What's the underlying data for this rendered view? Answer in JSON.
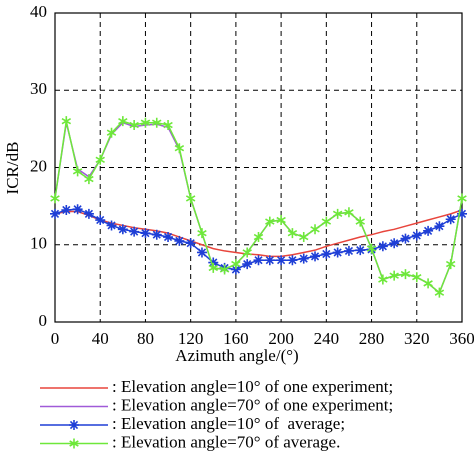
{
  "chart_data": {
    "type": "line",
    "x_label": "Azimuth angle/(°)",
    "y_label": "ICR/dB",
    "x": [
      0,
      10,
      20,
      30,
      40,
      50,
      60,
      70,
      80,
      90,
      100,
      110,
      120,
      130,
      140,
      150,
      160,
      170,
      180,
      190,
      200,
      210,
      220,
      230,
      240,
      250,
      260,
      270,
      280,
      290,
      300,
      310,
      320,
      330,
      340,
      350,
      360
    ],
    "xlim": [
      0,
      360
    ],
    "xticks": [
      0,
      40,
      80,
      120,
      160,
      200,
      240,
      280,
      320,
      360
    ],
    "ylim": [
      0,
      40
    ],
    "yticks": [
      0,
      10,
      20,
      30,
      40
    ],
    "grid": true,
    "series": [
      {
        "name": ": Elevation angle=10° of one experiment;",
        "color": "#e8453c",
        "marker": "none",
        "values": [
          14,
          14.3,
          14.3,
          13.8,
          13.2,
          12.8,
          12.5,
          12.2,
          12,
          11.8,
          11.5,
          11,
          10.5,
          10,
          9.5,
          9.2,
          9,
          8.8,
          8.7,
          8.5,
          8.5,
          8.7,
          9,
          9.3,
          9.8,
          10.2,
          10.6,
          11,
          11.3,
          11.7,
          12,
          12.4,
          12.8,
          13.2,
          13.6,
          14,
          14.5
        ]
      },
      {
        "name": ": Elevation angle=70° of one experiment;",
        "color": "#a05ad8",
        "marker": "none",
        "values": [
          16,
          25.8,
          19.8,
          18.8,
          21,
          24.3,
          25.8,
          25.3,
          25.5,
          25.6,
          25.2,
          22.3,
          16,
          11.5,
          7,
          6.8,
          7.5,
          9,
          11,
          13,
          13.2,
          11.5,
          11,
          12,
          13,
          14,
          14.2,
          13,
          9.5,
          5.5,
          6,
          6.2,
          5.8,
          5,
          3.8,
          7.5,
          16
        ]
      },
      {
        "name": ": Elevation angle=10° of  average;",
        "color": "#1f3fd6",
        "marker": "star",
        "values": [
          14,
          14.5,
          14.6,
          14,
          13.2,
          12.5,
          12,
          11.7,
          11.5,
          11.3,
          11,
          10.5,
          10.2,
          9,
          7.7,
          7,
          6.8,
          7.5,
          8,
          8,
          8,
          8,
          8.2,
          8.5,
          8.8,
          9,
          9.2,
          9.3,
          9.4,
          9.8,
          10.2,
          10.8,
          11.2,
          11.8,
          12.4,
          13.3,
          14
        ]
      },
      {
        "name": ": Elevation angle=70° of average.",
        "color": "#6ee83a",
        "marker": "asterisk",
        "values": [
          16,
          26,
          19.5,
          18.5,
          21,
          24.5,
          26,
          25.5,
          25.8,
          25.8,
          25.5,
          22.5,
          16,
          11.5,
          7,
          6.8,
          7.5,
          9,
          11,
          13,
          13.2,
          11.5,
          11,
          12,
          13,
          14,
          14.2,
          13,
          9.5,
          5.5,
          6,
          6.2,
          5.8,
          5,
          3.8,
          7.5,
          16
        ]
      }
    ]
  }
}
